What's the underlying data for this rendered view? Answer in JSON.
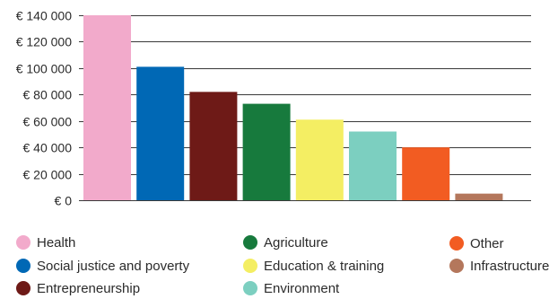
{
  "chart_data": {
    "type": "bar",
    "categories": [
      "Health",
      "Social justice and poverty",
      "Entrepreneurship",
      "Agriculture",
      "Education & training",
      "Environment",
      "Other",
      "Infrastructure"
    ],
    "values": [
      140000,
      101000,
      82000,
      73000,
      61000,
      52000,
      40000,
      5000
    ],
    "colors": [
      "#f2aacb",
      "#0068b5",
      "#6e1a17",
      "#177a3d",
      "#f4ee63",
      "#7ccfc0",
      "#f25c22",
      "#b4775c"
    ],
    "ylim": [
      0,
      140000
    ],
    "y_ticks": [
      0,
      20000,
      40000,
      60000,
      80000,
      100000,
      120000,
      140000
    ],
    "y_tick_labels": [
      "€ 0",
      "€ 20 000",
      "€ 40 000",
      "€ 60 000",
      "€ 80 000",
      "€ 100 000",
      "€ 120 000",
      "€ 140 000"
    ],
    "grid": true,
    "legend_position": "bottom",
    "title": "",
    "xlabel": "",
    "ylabel": ""
  },
  "legend": [
    {
      "label": "Health",
      "color": "#f2aacb"
    },
    {
      "label": "Social justice and poverty",
      "color": "#0068b5"
    },
    {
      "label": "Entrepreneurship",
      "color": "#6e1a17"
    },
    {
      "label": "Agriculture",
      "color": "#177a3d"
    },
    {
      "label": "Education & training",
      "color": "#f4ee63"
    },
    {
      "label": "Environment",
      "color": "#7ccfc0"
    },
    {
      "label": "Other",
      "color": "#f25c22"
    },
    {
      "label": "Infrastructure",
      "color": "#b4775c"
    }
  ]
}
